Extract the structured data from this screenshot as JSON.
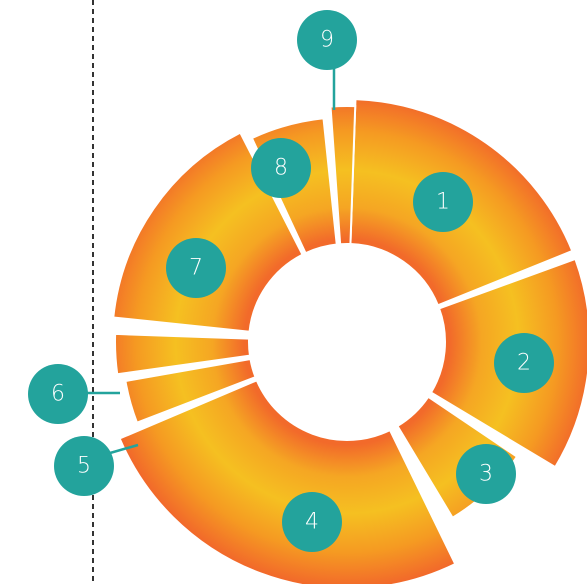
{
  "diagram": {
    "type": "segmented-donut",
    "colors": {
      "segment_inner": "#f5c021",
      "segment_outer": "#f26a2a",
      "badge": "#23a39c",
      "badge_text": "#ffffff",
      "divider": "#ffffff",
      "guide_line": "#333333"
    },
    "segments": [
      {
        "label": "1"
      },
      {
        "label": "2"
      },
      {
        "label": "3"
      },
      {
        "label": "4"
      },
      {
        "label": "5"
      },
      {
        "label": "6"
      },
      {
        "label": "7"
      },
      {
        "label": "8"
      },
      {
        "label": "9"
      }
    ]
  }
}
